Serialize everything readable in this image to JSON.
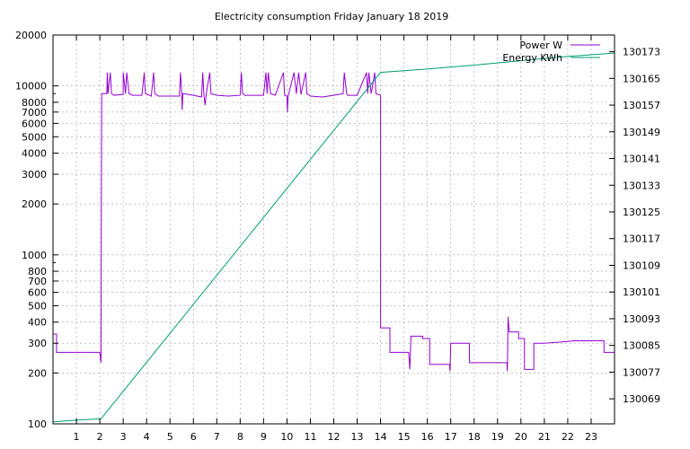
{
  "chart_data": {
    "type": "line",
    "title": "Electricity consumption Friday January 18 2019",
    "xlabel": "",
    "ylabel": "",
    "grid": true,
    "legend_position": "top-right",
    "x_range": [
      0,
      24
    ],
    "x_ticks": [
      1,
      2,
      3,
      4,
      5,
      6,
      7,
      8,
      9,
      10,
      11,
      12,
      13,
      14,
      15,
      16,
      17,
      18,
      19,
      20,
      21,
      22,
      23
    ],
    "y_left": {
      "scale": "log",
      "range": [
        100,
        20000
      ],
      "ticks": [
        100,
        200,
        300,
        400,
        500,
        600,
        700,
        800,
        1000,
        2000,
        3000,
        4000,
        5000,
        6000,
        7000,
        8000,
        10000,
        20000
      ]
    },
    "y_right": {
      "scale": "linear",
      "range": [
        130061.5,
        130178
      ],
      "ticks": [
        130069,
        130077,
        130085,
        130093,
        130101,
        130109,
        130117,
        130125,
        130133,
        130141,
        130149,
        130157,
        130165,
        130173
      ]
    },
    "series": [
      {
        "name": "Power W",
        "axis": "left",
        "color": "#9400d3",
        "points": [
          [
            0,
            340
          ],
          [
            0.15,
            340
          ],
          [
            0.15,
            265
          ],
          [
            2.0,
            265
          ],
          [
            2.05,
            230
          ],
          [
            2.08,
            9000
          ],
          [
            2.3,
            9000
          ],
          [
            2.32,
            12000
          ],
          [
            2.35,
            9000
          ],
          [
            2.45,
            12000
          ],
          [
            2.5,
            9000
          ],
          [
            2.6,
            8800
          ],
          [
            3.0,
            8900
          ],
          [
            3.0,
            12000
          ],
          [
            3.1,
            9000
          ],
          [
            3.15,
            12000
          ],
          [
            3.25,
            9000
          ],
          [
            3.4,
            8800
          ],
          [
            3.8,
            8800
          ],
          [
            3.9,
            12000
          ],
          [
            3.95,
            9000
          ],
          [
            4.2,
            8700
          ],
          [
            4.3,
            12000
          ],
          [
            4.35,
            9000
          ],
          [
            4.5,
            8700
          ],
          [
            5.0,
            8700
          ],
          [
            5.4,
            8700
          ],
          [
            5.45,
            12000
          ],
          [
            5.5,
            9000
          ],
          [
            5.52,
            7200
          ],
          [
            5.55,
            9000
          ],
          [
            6.0,
            8800
          ],
          [
            6.35,
            8600
          ],
          [
            6.4,
            12000
          ],
          [
            6.45,
            8800
          ],
          [
            6.5,
            7700
          ],
          [
            6.55,
            9000
          ],
          [
            6.7,
            12000
          ],
          [
            6.75,
            9000
          ],
          [
            7.0,
            8800
          ],
          [
            7.5,
            8700
          ],
          [
            8.0,
            8800
          ],
          [
            8.05,
            12000
          ],
          [
            8.1,
            9000
          ],
          [
            8.2,
            8800
          ],
          [
            8.6,
            8800
          ],
          [
            9.0,
            8800
          ],
          [
            9.1,
            12000
          ],
          [
            9.15,
            9000
          ],
          [
            9.2,
            12000
          ],
          [
            9.3,
            9000
          ],
          [
            9.5,
            8800
          ],
          [
            9.85,
            12000
          ],
          [
            9.9,
            8800
          ],
          [
            10.0,
            8700
          ],
          [
            10.02,
            7000
          ],
          [
            10.05,
            8700
          ],
          [
            10.3,
            12000
          ],
          [
            10.4,
            9000
          ],
          [
            10.5,
            12000
          ],
          [
            10.6,
            8900
          ],
          [
            10.8,
            12000
          ],
          [
            10.85,
            9000
          ],
          [
            11.0,
            8700
          ],
          [
            11.5,
            8600
          ],
          [
            12.0,
            8800
          ],
          [
            12.4,
            9000
          ],
          [
            12.45,
            12000
          ],
          [
            12.55,
            9000
          ],
          [
            12.6,
            8800
          ],
          [
            13.0,
            8800
          ],
          [
            13.4,
            12000
          ],
          [
            13.45,
            9000
          ],
          [
            13.5,
            12000
          ],
          [
            13.6,
            9000
          ],
          [
            13.75,
            12000
          ],
          [
            13.8,
            9000
          ],
          [
            14.0,
            8800
          ],
          [
            14.0,
            370
          ],
          [
            14.4,
            370
          ],
          [
            14.4,
            265
          ],
          [
            15.2,
            265
          ],
          [
            15.25,
            210
          ],
          [
            15.3,
            330
          ],
          [
            15.8,
            330
          ],
          [
            15.8,
            320
          ],
          [
            16.1,
            320
          ],
          [
            16.1,
            225
          ],
          [
            16.95,
            225
          ],
          [
            16.97,
            205
          ],
          [
            17.0,
            300
          ],
          [
            17.8,
            300
          ],
          [
            17.8,
            230
          ],
          [
            19.4,
            230
          ],
          [
            19.42,
            205
          ],
          [
            19.45,
            430
          ],
          [
            19.5,
            350
          ],
          [
            19.9,
            350
          ],
          [
            19.9,
            320
          ],
          [
            20.15,
            320
          ],
          [
            20.15,
            210
          ],
          [
            20.55,
            210
          ],
          [
            20.55,
            300
          ],
          [
            21.0,
            300
          ],
          [
            21.7,
            305
          ],
          [
            22.3,
            310
          ],
          [
            23.55,
            310
          ],
          [
            23.55,
            265
          ],
          [
            24,
            265
          ]
        ]
      },
      {
        "name": "Energy KWh",
        "axis": "right",
        "color": "#009e73",
        "points": [
          [
            0,
            130062.1
          ],
          [
            1.0,
            130062.6
          ],
          [
            2.05,
            130063.0
          ],
          [
            14.0,
            130166.8
          ],
          [
            16.0,
            130167.8
          ],
          [
            18.0,
            130169.0
          ],
          [
            20.0,
            130170.3
          ],
          [
            22.0,
            130171.6
          ],
          [
            24,
            130172.6
          ]
        ]
      }
    ]
  }
}
